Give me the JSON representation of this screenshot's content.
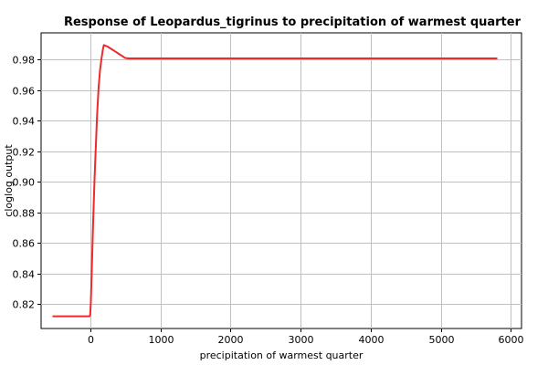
{
  "chart_data": {
    "type": "line",
    "title": "Response of Leopardus_tigrinus to precipitation of warmest quarter",
    "xlabel": "precipitation of warmest quarter",
    "ylabel": "cloglog output",
    "xlim": [
      -700,
      6150
    ],
    "ylim": [
      0.804,
      0.9975
    ],
    "xticks": [
      0,
      1000,
      2000,
      3000,
      4000,
      5000,
      6000
    ],
    "yticks": [
      0.82,
      0.84,
      0.86,
      0.88,
      0.9,
      0.92,
      0.94,
      0.96,
      0.98
    ],
    "grid": true,
    "series": [
      {
        "color": "#ee2a2a",
        "points": [
          [
            -530,
            0.812
          ],
          [
            -100,
            0.812
          ],
          [
            -10,
            0.812
          ],
          [
            0,
            0.813
          ],
          [
            10,
            0.822
          ],
          [
            20,
            0.838
          ],
          [
            40,
            0.87
          ],
          [
            60,
            0.9
          ],
          [
            80,
            0.923
          ],
          [
            100,
            0.945
          ],
          [
            120,
            0.962
          ],
          [
            140,
            0.973
          ],
          [
            160,
            0.98
          ],
          [
            180,
            0.9865
          ],
          [
            195,
            0.9895
          ],
          [
            250,
            0.9885
          ],
          [
            300,
            0.987
          ],
          [
            350,
            0.9855
          ],
          [
            400,
            0.984
          ],
          [
            450,
            0.9825
          ],
          [
            500,
            0.981
          ],
          [
            550,
            0.9808
          ],
          [
            5800,
            0.9808
          ]
        ]
      }
    ]
  }
}
